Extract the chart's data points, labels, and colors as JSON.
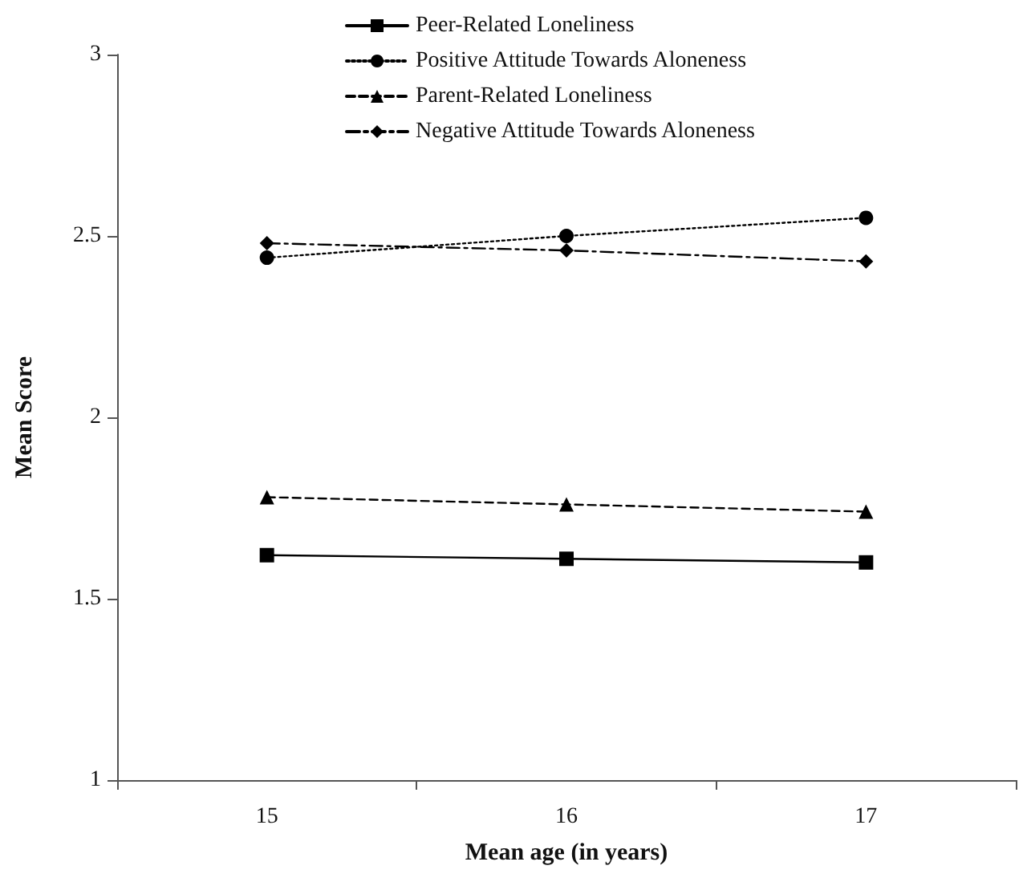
{
  "chart_data": {
    "type": "line",
    "xlabel": "Mean age (in years)",
    "ylabel": "Mean Score",
    "categories": [
      "15",
      "16",
      "17"
    ],
    "series": [
      {
        "name": "Peer-Related Loneliness",
        "color": "#000000",
        "marker": "square",
        "line_style": "solid",
        "values": [
          1.62,
          1.61,
          1.6
        ]
      },
      {
        "name": "Positive Attitude Towards Aloneness",
        "color": "#000000",
        "marker": "circle",
        "line_style": "dotted",
        "values": [
          2.44,
          2.5,
          2.55
        ]
      },
      {
        "name": "Parent-Related Loneliness",
        "color": "#000000",
        "marker": "triangle",
        "line_style": "dashed",
        "values": [
          1.78,
          1.76,
          1.74
        ]
      },
      {
        "name": "Negative Attitude Towards Aloneness",
        "color": "#000000",
        "marker": "diamond",
        "line_style": "dashdot",
        "values": [
          2.48,
          2.46,
          2.43
        ]
      }
    ],
    "ylim": [
      1,
      3
    ],
    "yticks": [
      1,
      1.5,
      2,
      2.5,
      3
    ],
    "grid": false,
    "legend": "top"
  }
}
